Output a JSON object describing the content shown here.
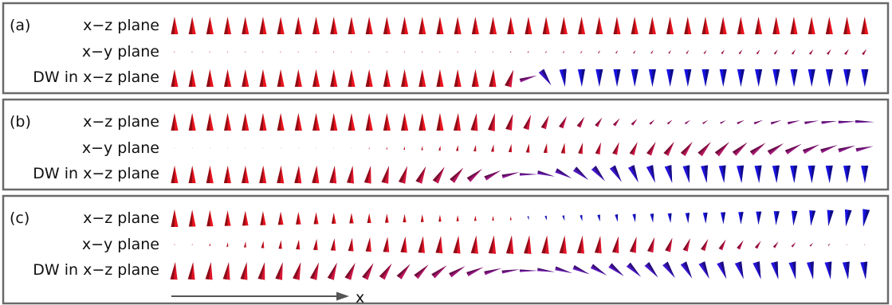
{
  "panels": [
    {
      "tag": "(a)",
      "rows": [
        {
          "label": "x−z plane",
          "kind": "uniform_xz"
        },
        {
          "label": "x−y plane",
          "kind": "fade_in_xy"
        },
        {
          "label": "DW in x−z plane",
          "kind": "sharp_wall"
        }
      ]
    },
    {
      "tag": "(b)",
      "rows": [
        {
          "label": "x−z plane",
          "kind": "tilt_xz"
        },
        {
          "label": "x−y plane",
          "kind": "grow_xy"
        },
        {
          "label": "DW in x−z plane",
          "kind": "wide_wall"
        }
      ]
    },
    {
      "tag": "(c)",
      "rows": [
        {
          "label": "x−z plane",
          "kind": "flip_xz"
        },
        {
          "label": "x−y plane",
          "kind": "bulge_xy"
        },
        {
          "label": "DW in x−z plane",
          "kind": "wider_wall"
        }
      ]
    }
  ],
  "axis_label": "x",
  "colors": {
    "up": "#e8141e",
    "down": "#1712e0",
    "mid": "#7a1aa8",
    "frame": "#6a6a6a",
    "axis": "#555555"
  }
}
